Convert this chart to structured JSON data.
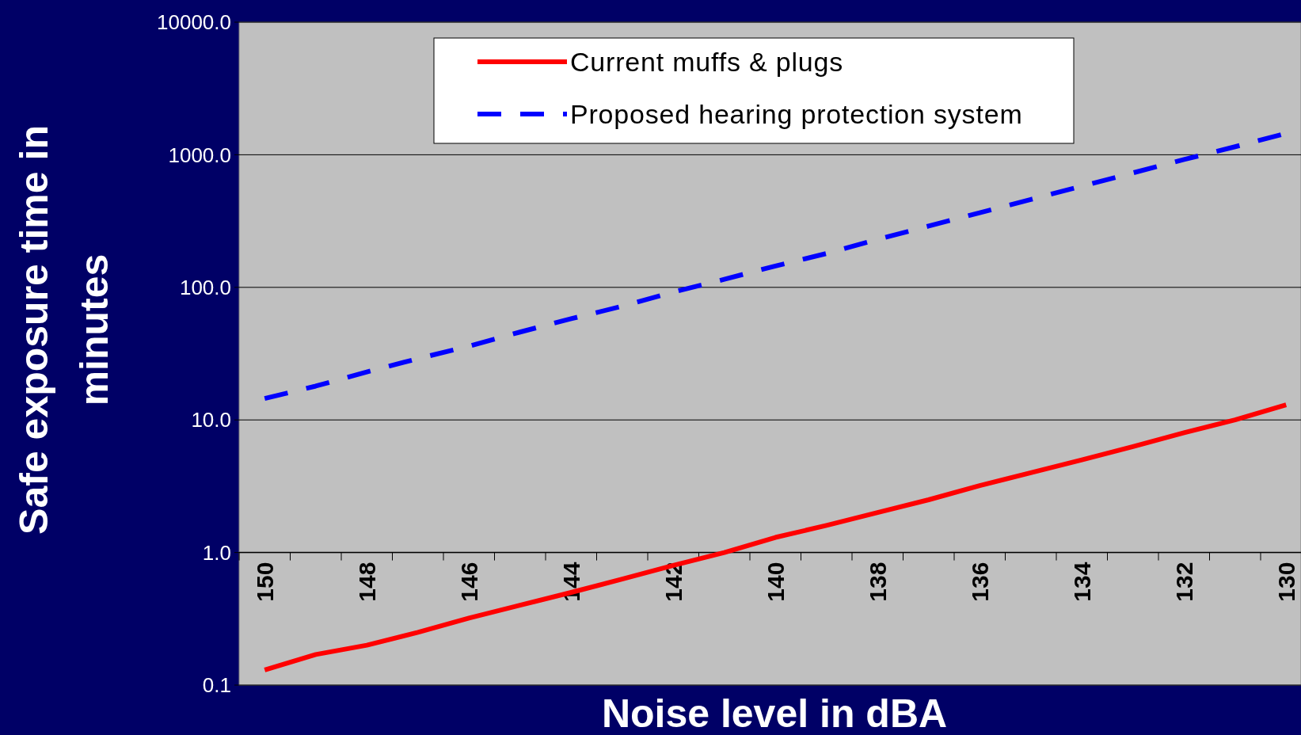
{
  "chart_data": {
    "type": "line",
    "xlabel": "Noise level in dBA",
    "ylabel": "Safe exposure time in minutes",
    "categories": [
      "150",
      null,
      "148",
      null,
      "146",
      null,
      "144",
      null,
      "142",
      null,
      "140",
      null,
      "138",
      null,
      "136",
      null,
      "134",
      null,
      "132",
      null,
      "130"
    ],
    "series": [
      {
        "name": "Current muffs & plugs",
        "color": "#ff0000",
        "line_style": "solid",
        "values": [
          0.13,
          0.17,
          0.2,
          0.25,
          0.32,
          0.4,
          0.5,
          0.63,
          0.8,
          1.0,
          1.3,
          1.6,
          2.0,
          2.5,
          3.2,
          4.0,
          5.0,
          6.3,
          8.0,
          10,
          13
        ]
      },
      {
        "name": "Proposed hearing protection system",
        "color": "#0000ff",
        "line_style": "dashed",
        "values": [
          14.5,
          18,
          23,
          29,
          36,
          46,
          58,
          72,
          92,
          115,
          145,
          180,
          230,
          290,
          365,
          460,
          580,
          730,
          920,
          1150,
          1450
        ]
      }
    ],
    "log": true,
    "ylim": [
      0.1,
      10000
    ],
    "yticks": [
      {
        "value": 0.1,
        "label": "0.1"
      },
      {
        "value": 1,
        "label": "1.0"
      },
      {
        "value": 10,
        "label": "10.0"
      },
      {
        "value": 100,
        "label": "100.0"
      },
      {
        "value": 1000,
        "label": "1000.0"
      },
      {
        "value": 10000,
        "label": "10000.0"
      }
    ],
    "grid": "y",
    "legend": "top"
  }
}
